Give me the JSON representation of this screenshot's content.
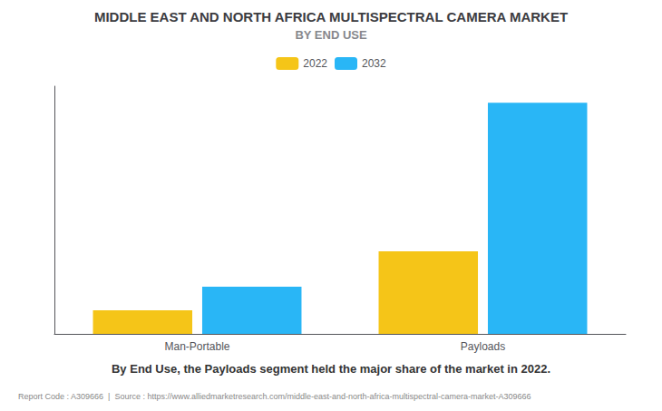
{
  "chart_data": {
    "type": "bar",
    "title": "MIDDLE EAST AND NORTH AFRICA MULTISPECTRAL CAMERA MARKET",
    "subtitle": "BY END USE",
    "categories": [
      "Man-Portable",
      "Payloads"
    ],
    "series": [
      {
        "name": "2022",
        "color": "#F5C518",
        "values": [
          1.0,
          3.5
        ]
      },
      {
        "name": "2032",
        "color": "#29B6F6",
        "values": [
          2.0,
          9.8
        ]
      }
    ],
    "ylim": [
      0,
      10.5
    ],
    "yticks": [],
    "grid": false,
    "legend": "top",
    "tick_labels": "x",
    "annotations": [
      "By End Use, the Payloads segment held the major share of the market in 2022.",
      "Report Code : A309666  |  Source : https://www.alliedmarketresearch.com/middle-east-and-north-africa-multispectral-camera-market-A309666"
    ]
  }
}
